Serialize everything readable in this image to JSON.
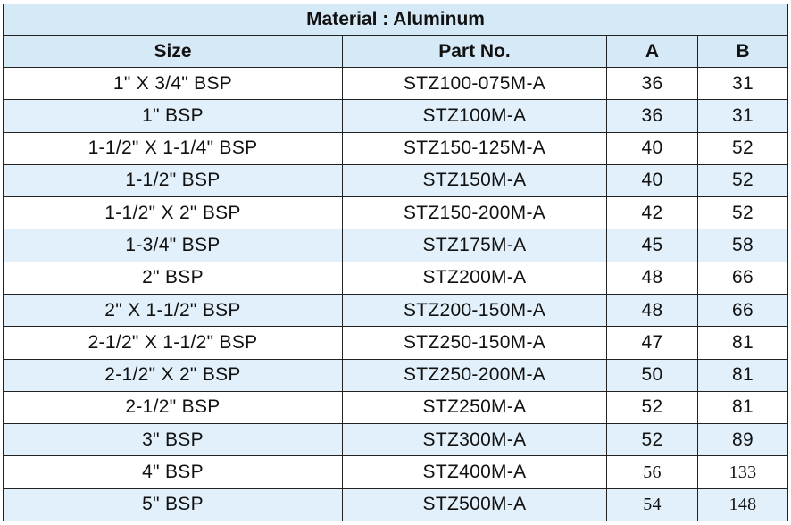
{
  "title": "Material : Aluminum",
  "columns": [
    "Size",
    "Part No.",
    "A",
    "B"
  ],
  "rows": [
    {
      "size": "1\" X 3/4\" BSP",
      "part": "STZ100-075M-A",
      "a": "36",
      "b": "31"
    },
    {
      "size": "1\" BSP",
      "part": "STZ100M-A",
      "a": "36",
      "b": "31"
    },
    {
      "size": "1-1/2\" X 1-1/4\" BSP",
      "part": "STZ150-125M-A",
      "a": "40",
      "b": "52"
    },
    {
      "size": "1-1/2\" BSP",
      "part": "STZ150M-A",
      "a": "40",
      "b": "52"
    },
    {
      "size": "1-1/2\" X 2\" BSP",
      "part": "STZ150-200M-A",
      "a": "42",
      "b": "52"
    },
    {
      "size": "1-3/4\" BSP",
      "part": "STZ175M-A",
      "a": "45",
      "b": "58"
    },
    {
      "size": "2\" BSP",
      "part": "STZ200M-A",
      "a": "48",
      "b": "66"
    },
    {
      "size": "2\" X 1-1/2\" BSP",
      "part": "STZ200-150M-A",
      "a": "48",
      "b": "66"
    },
    {
      "size": "2-1/2\" X 1-1/2\" BSP",
      "part": "STZ250-150M-A",
      "a": "47",
      "b": "81"
    },
    {
      "size": "2-1/2\" X 2\" BSP",
      "part": "STZ250-200M-A",
      "a": "50",
      "b": "81"
    },
    {
      "size": "2-1/2\" BSP",
      "part": "STZ250M-A",
      "a": "52",
      "b": "81"
    },
    {
      "size": "3\" BSP",
      "part": "STZ300M-A",
      "a": "52",
      "b": "89"
    },
    {
      "size": "4\" BSP",
      "part": "STZ400M-A",
      "a": "56",
      "b": "133"
    },
    {
      "size": "5\" BSP",
      "part": "STZ500M-A",
      "a": "54",
      "b": "148"
    }
  ],
  "colors": {
    "header_bg": "#d6e9f7",
    "stripe_bg": "#e1f0fa",
    "border": "#222222"
  }
}
